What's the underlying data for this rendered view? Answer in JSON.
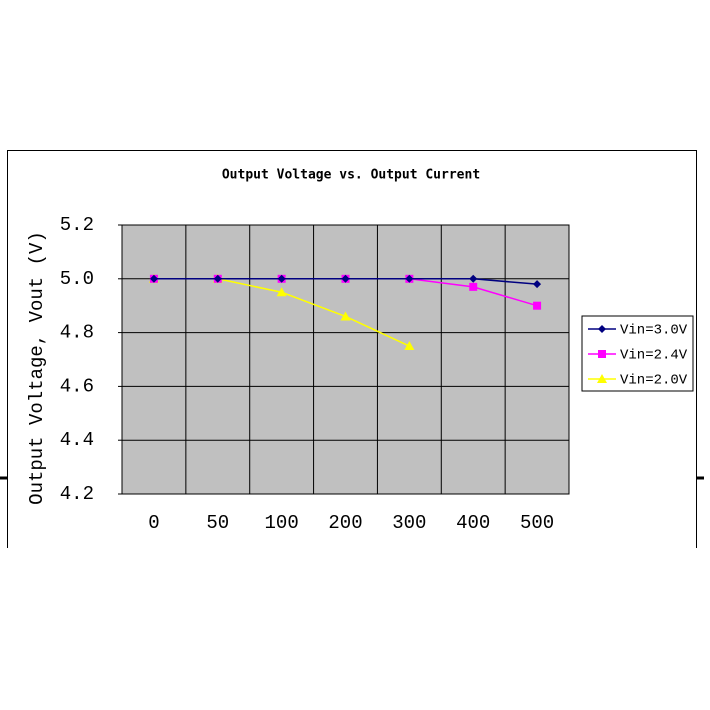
{
  "chart_data": {
    "type": "line",
    "title": "Output Voltage vs. Output Current",
    "y_label": "Output Voltage, Vout (V)",
    "categories": [
      "0",
      "50",
      "100",
      "200",
      "300",
      "400",
      "500"
    ],
    "series": [
      {
        "name": "Vin=3.0V",
        "color": "#000080",
        "marker": "diamond",
        "values": [
          5.0,
          5.0,
          5.0,
          5.0,
          5.0,
          5.0,
          4.98
        ]
      },
      {
        "name": "Vin=2.4V",
        "color": "#ff00ff",
        "marker": "square",
        "values": [
          5.0,
          5.0,
          5.0,
          5.0,
          5.0,
          4.97,
          4.9
        ]
      },
      {
        "name": "Vin=2.0V",
        "color": "#ffff00",
        "marker": "triangle",
        "values": [
          5.0,
          5.0,
          4.95,
          4.86,
          4.75,
          null,
          null
        ]
      }
    ],
    "ylim": [
      4.2,
      5.2
    ],
    "yticks": [
      4.2,
      4.4,
      4.6,
      4.8,
      {
        "value": 5,
        "label": "5.0"
      },
      5.2
    ],
    "grid": true,
    "legend": "right",
    "plot_background": "#c0c0c0"
  }
}
